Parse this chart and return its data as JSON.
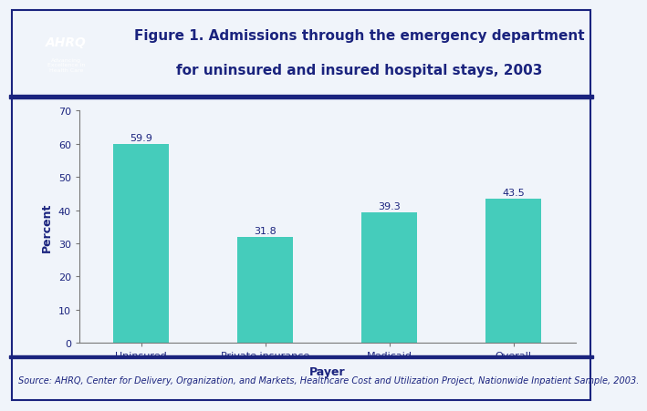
{
  "categories": [
    "Uninsured",
    "Private insurance",
    "Medicaid",
    "Overall"
  ],
  "values": [
    59.9,
    31.8,
    39.3,
    43.5
  ],
  "bar_color": "#45CCBB",
  "bar_labels": [
    "59.9",
    "31.8",
    "39.3",
    "43.5"
  ],
  "title_line1": "Figure 1. Admissions through the emergency department",
  "title_line2": "for uninsured and insured hospital stays, 2003",
  "xlabel": "Payer",
  "ylabel": "Percent",
  "ylim": [
    0,
    70
  ],
  "yticks": [
    0,
    10,
    20,
    30,
    40,
    50,
    60,
    70
  ],
  "title_color": "#1A237E",
  "label_color": "#1A237E",
  "axis_label_color": "#1A237E",
  "tick_label_color": "#1A237E",
  "source_text": "Source: AHRQ, Center for Delivery, Organization, and Markets, Healthcare Cost and Utilization Project, Nationwide Inpatient Sample, 2003.",
  "bg_color": "#F0F4FA",
  "header_bg_color": "#FFFFFF",
  "chart_bg_color": "#F0F4FA",
  "border_color": "#1A237E",
  "logo_bg": "#1E6BB0",
  "bar_label_fontsize": 8,
  "title_fontsize": 11,
  "axis_label_fontsize": 9,
  "tick_fontsize": 8,
  "source_fontsize": 7
}
